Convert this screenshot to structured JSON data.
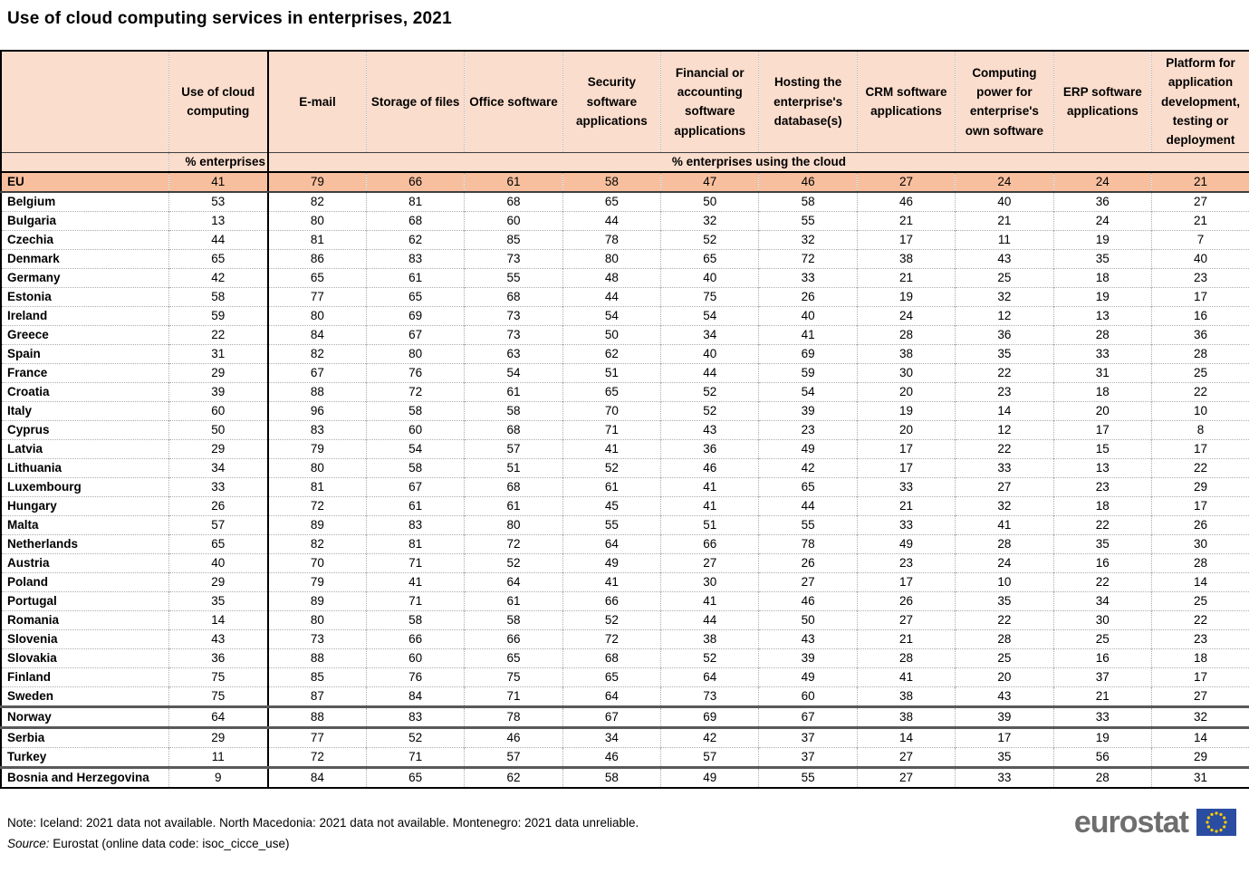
{
  "title": "Use of cloud computing services in enterprises, 2021",
  "colors": {
    "header_bg": "#fbddcd",
    "highlight_row_bg": "#f8bf9e",
    "logo_gray": "#6e6e6e",
    "flag_blue": "#2a4da1",
    "star_yellow": "#ffcc00"
  },
  "chart_data": {
    "type": "table",
    "title": "Use of cloud computing services in enterprises, 2021",
    "unit_first_column": "% enterprises",
    "unit_other_columns": "% enterprises using the cloud",
    "columns": [
      "Use of cloud computing",
      "E-mail",
      "Storage of files",
      "Office software",
      "Security software applications",
      "Financial or accounting software applications",
      "Hosting the enterprise's database(s)",
      "CRM software applications",
      "Computing power for enterprise's own software",
      "ERP software applications",
      "Platform for application development, testing or deployment"
    ],
    "rows": [
      {
        "name": "EU",
        "highlight": true,
        "values": [
          41,
          79,
          66,
          61,
          58,
          47,
          46,
          27,
          24,
          24,
          21
        ]
      },
      {
        "name": "Belgium",
        "values": [
          53,
          82,
          81,
          68,
          65,
          50,
          58,
          46,
          40,
          36,
          27
        ]
      },
      {
        "name": "Bulgaria",
        "values": [
          13,
          80,
          68,
          60,
          44,
          32,
          55,
          21,
          21,
          24,
          21
        ]
      },
      {
        "name": "Czechia",
        "values": [
          44,
          81,
          62,
          85,
          78,
          52,
          32,
          17,
          11,
          19,
          7
        ]
      },
      {
        "name": "Denmark",
        "values": [
          65,
          86,
          83,
          73,
          80,
          65,
          72,
          38,
          43,
          35,
          40
        ]
      },
      {
        "name": "Germany",
        "values": [
          42,
          65,
          61,
          55,
          48,
          40,
          33,
          21,
          25,
          18,
          23
        ]
      },
      {
        "name": "Estonia",
        "values": [
          58,
          77,
          65,
          68,
          44,
          75,
          26,
          19,
          32,
          19,
          17
        ]
      },
      {
        "name": "Ireland",
        "values": [
          59,
          80,
          69,
          73,
          54,
          54,
          40,
          24,
          12,
          13,
          16
        ]
      },
      {
        "name": "Greece",
        "values": [
          22,
          84,
          67,
          73,
          50,
          34,
          41,
          28,
          36,
          28,
          36
        ]
      },
      {
        "name": "Spain",
        "values": [
          31,
          82,
          80,
          63,
          62,
          40,
          69,
          38,
          35,
          33,
          28
        ]
      },
      {
        "name": "France",
        "values": [
          29,
          67,
          76,
          54,
          51,
          44,
          59,
          30,
          22,
          31,
          25
        ]
      },
      {
        "name": "Croatia",
        "values": [
          39,
          88,
          72,
          61,
          65,
          52,
          54,
          20,
          23,
          18,
          22
        ]
      },
      {
        "name": "Italy",
        "values": [
          60,
          96,
          58,
          58,
          70,
          52,
          39,
          19,
          14,
          20,
          10
        ]
      },
      {
        "name": "Cyprus",
        "values": [
          50,
          83,
          60,
          68,
          71,
          43,
          23,
          20,
          12,
          17,
          8
        ]
      },
      {
        "name": "Latvia",
        "values": [
          29,
          79,
          54,
          57,
          41,
          36,
          49,
          17,
          22,
          15,
          17
        ]
      },
      {
        "name": "Lithuania",
        "values": [
          34,
          80,
          58,
          51,
          52,
          46,
          42,
          17,
          33,
          13,
          22
        ]
      },
      {
        "name": "Luxembourg",
        "values": [
          33,
          81,
          67,
          68,
          61,
          41,
          65,
          33,
          27,
          23,
          29
        ]
      },
      {
        "name": "Hungary",
        "values": [
          26,
          72,
          61,
          61,
          45,
          41,
          44,
          21,
          32,
          18,
          17
        ]
      },
      {
        "name": "Malta",
        "values": [
          57,
          89,
          83,
          80,
          55,
          51,
          55,
          33,
          41,
          22,
          26
        ]
      },
      {
        "name": "Netherlands",
        "values": [
          65,
          82,
          81,
          72,
          64,
          66,
          78,
          49,
          28,
          35,
          30
        ]
      },
      {
        "name": "Austria",
        "values": [
          40,
          70,
          71,
          52,
          49,
          27,
          26,
          23,
          24,
          16,
          28
        ]
      },
      {
        "name": "Poland",
        "values": [
          29,
          79,
          41,
          64,
          41,
          30,
          27,
          17,
          10,
          22,
          14
        ]
      },
      {
        "name": "Portugal",
        "values": [
          35,
          89,
          71,
          61,
          66,
          41,
          46,
          26,
          35,
          34,
          25
        ]
      },
      {
        "name": "Romania",
        "values": [
          14,
          80,
          58,
          58,
          52,
          44,
          50,
          27,
          22,
          30,
          22
        ]
      },
      {
        "name": "Slovenia",
        "values": [
          43,
          73,
          66,
          66,
          72,
          38,
          43,
          21,
          28,
          25,
          23
        ]
      },
      {
        "name": "Slovakia",
        "values": [
          36,
          88,
          60,
          65,
          68,
          52,
          39,
          28,
          25,
          16,
          18
        ]
      },
      {
        "name": "Finland",
        "values": [
          75,
          85,
          76,
          75,
          65,
          64,
          49,
          41,
          20,
          37,
          17
        ]
      },
      {
        "name": "Sweden",
        "values": [
          75,
          87,
          84,
          71,
          64,
          73,
          60,
          38,
          43,
          21,
          27
        ]
      },
      {
        "name": "Norway",
        "separator_above": true,
        "values": [
          64,
          88,
          83,
          78,
          67,
          69,
          67,
          38,
          39,
          33,
          32
        ]
      },
      {
        "name": "Serbia",
        "separator_above": true,
        "values": [
          29,
          77,
          52,
          46,
          34,
          42,
          37,
          14,
          17,
          19,
          14
        ]
      },
      {
        "name": "Turkey",
        "values": [
          11,
          72,
          71,
          57,
          46,
          57,
          37,
          27,
          35,
          56,
          29
        ]
      },
      {
        "name": "Bosnia and Herzegovina",
        "separator_above": true,
        "values": [
          9,
          84,
          65,
          62,
          58,
          49,
          55,
          27,
          33,
          28,
          31
        ]
      }
    ]
  },
  "footer": {
    "note": "Note: Iceland: 2021 data not available. North Macedonia: 2021 data not available. Montenegro: 2021 data unreliable.",
    "source_label": "Source:",
    "source_text": "Eurostat (online data code: isoc_cicce_use)",
    "logo_text": "eurostat"
  }
}
